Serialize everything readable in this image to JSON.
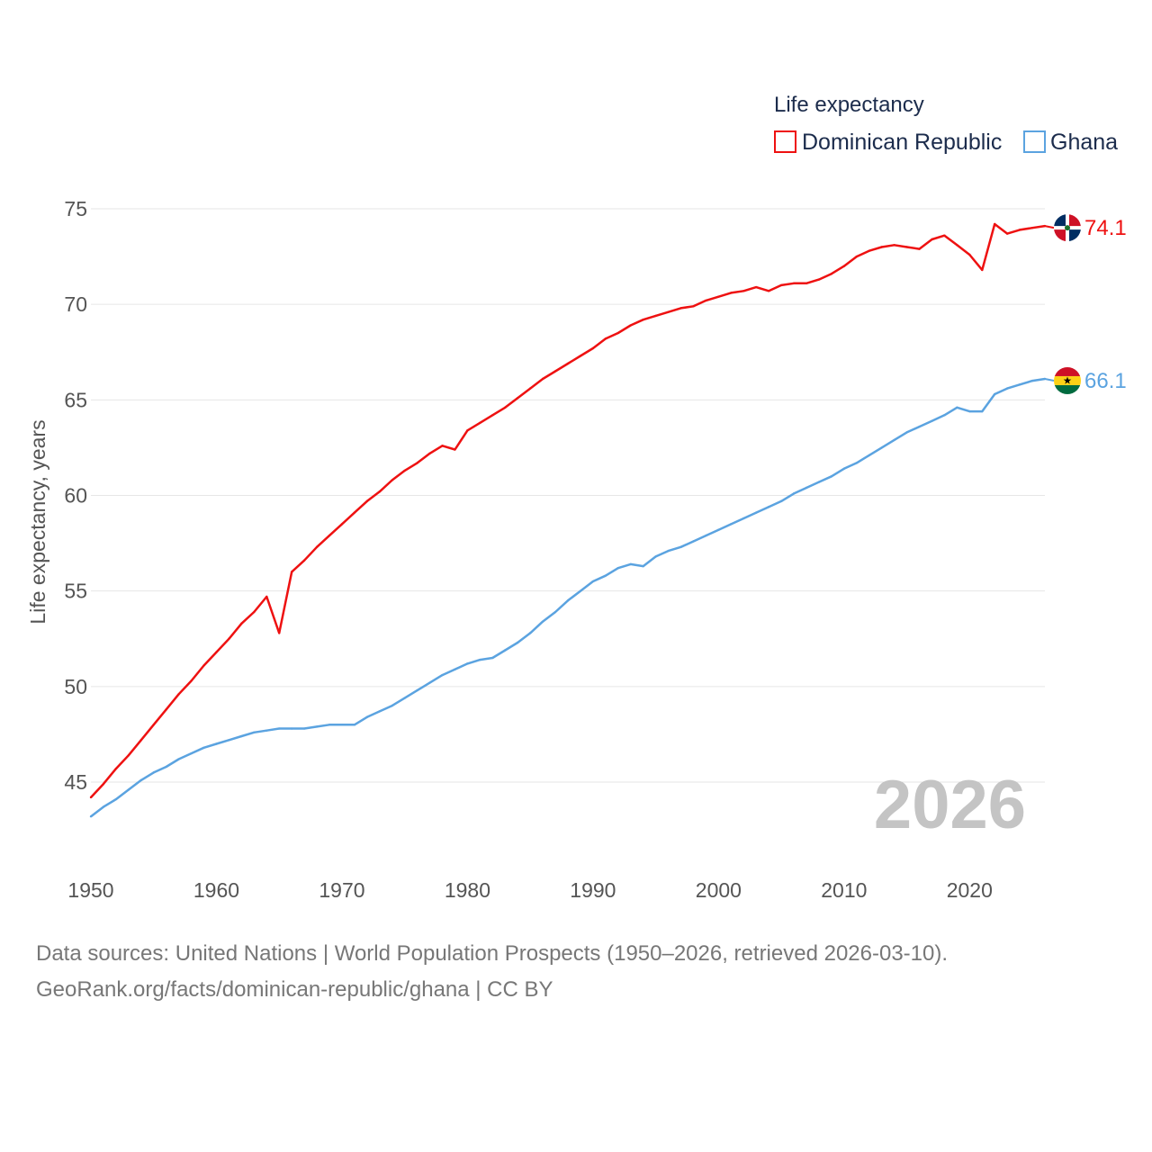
{
  "colors": {
    "dominican_republic": "#ee1111",
    "ghana": "#5ba3e0",
    "grid": "#e6e6e6",
    "watermark": "#c4c4c4"
  },
  "legend": {
    "title": "Life expectancy",
    "items": [
      {
        "label": "Dominican Republic",
        "series": 0
      },
      {
        "label": "Ghana",
        "series": 1
      }
    ]
  },
  "end_labels": {
    "dominican_republic": "74.1",
    "ghana": "66.1"
  },
  "flag_icons": [
    "dominican-republic-flag-icon",
    "ghana-flag-icon"
  ],
  "watermark_year": "2026",
  "footer": {
    "source_line": "Data sources: United Nations | World Population Prospects (1950–2026, retrieved 2026-03-10).",
    "credit_line": "GeoRank.org/facts/dominican-republic/ghana | CC BY"
  },
  "chart_data": {
    "type": "line",
    "title": "Life expectancy",
    "xlabel": "",
    "ylabel": "Life expectancy, years",
    "xlim": [
      1950,
      2026
    ],
    "ylim": [
      42,
      77
    ],
    "grid": true,
    "legend_position": "top-right",
    "x_ticks": [
      1950,
      1960,
      1970,
      1980,
      1990,
      2000,
      2010,
      2020
    ],
    "y_ticks": [
      45,
      50,
      55,
      60,
      65,
      70,
      75
    ],
    "x": [
      1950,
      1951,
      1952,
      1953,
      1954,
      1955,
      1956,
      1957,
      1958,
      1959,
      1960,
      1961,
      1962,
      1963,
      1964,
      1965,
      1966,
      1967,
      1968,
      1969,
      1970,
      1971,
      1972,
      1973,
      1974,
      1975,
      1976,
      1977,
      1978,
      1979,
      1980,
      1981,
      1982,
      1983,
      1984,
      1985,
      1986,
      1987,
      1988,
      1989,
      1990,
      1991,
      1992,
      1993,
      1994,
      1995,
      1996,
      1997,
      1998,
      1999,
      2000,
      2001,
      2002,
      2003,
      2004,
      2005,
      2006,
      2007,
      2008,
      2009,
      2010,
      2011,
      2012,
      2013,
      2014,
      2015,
      2016,
      2017,
      2018,
      2019,
      2020,
      2021,
      2022,
      2023,
      2024,
      2025,
      2026
    ],
    "series": [
      {
        "name": "Dominican Republic",
        "values": [
          44.2,
          44.9,
          45.7,
          46.4,
          47.2,
          48.0,
          48.8,
          49.6,
          50.3,
          51.1,
          51.8,
          52.5,
          53.3,
          53.9,
          54.7,
          52.8,
          56.0,
          56.6,
          57.3,
          57.9,
          58.5,
          59.1,
          59.7,
          60.2,
          60.8,
          61.3,
          61.7,
          62.2,
          62.6,
          62.4,
          63.4,
          63.8,
          64.2,
          64.6,
          65.1,
          65.6,
          66.1,
          66.5,
          66.9,
          67.3,
          67.7,
          68.2,
          68.5,
          68.9,
          69.2,
          69.4,
          69.6,
          69.8,
          69.9,
          70.2,
          70.4,
          70.6,
          70.7,
          70.9,
          70.7,
          71.0,
          71.1,
          71.1,
          71.3,
          71.6,
          72.0,
          72.5,
          72.8,
          73.0,
          73.1,
          73.0,
          72.9,
          73.4,
          73.6,
          73.1,
          72.6,
          71.8,
          74.2,
          73.7,
          73.9,
          74.0,
          74.1
        ]
      },
      {
        "name": "Ghana",
        "values": [
          43.2,
          43.7,
          44.1,
          44.6,
          45.1,
          45.5,
          45.8,
          46.2,
          46.5,
          46.8,
          47.0,
          47.2,
          47.4,
          47.6,
          47.7,
          47.8,
          47.8,
          47.8,
          47.9,
          48.0,
          48.0,
          48.0,
          48.4,
          48.7,
          49.0,
          49.4,
          49.8,
          50.2,
          50.6,
          50.9,
          51.2,
          51.4,
          51.5,
          51.9,
          52.3,
          52.8,
          53.4,
          53.9,
          54.5,
          55.0,
          55.5,
          55.8,
          56.2,
          56.4,
          56.3,
          56.8,
          57.1,
          57.3,
          57.6,
          57.9,
          58.2,
          58.5,
          58.8,
          59.1,
          59.4,
          59.7,
          60.1,
          60.4,
          60.7,
          61.0,
          61.4,
          61.7,
          62.1,
          62.5,
          62.9,
          63.3,
          63.6,
          63.9,
          64.2,
          64.6,
          64.4,
          64.4,
          65.3,
          65.6,
          65.8,
          66.0,
          66.1
        ]
      }
    ]
  }
}
